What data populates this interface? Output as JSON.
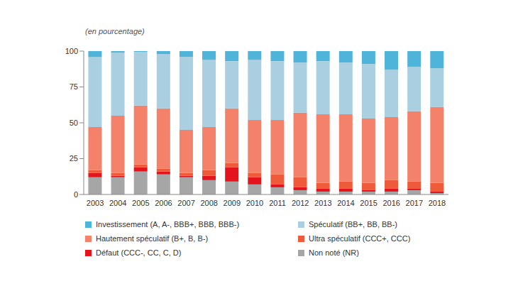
{
  "chart_data": {
    "type": "bar",
    "subtitle": "(en pourcentage)",
    "stacked": true,
    "grid": false,
    "legend": "bottom",
    "categories": [
      "2003",
      "2004",
      "2005",
      "2006",
      "2007",
      "2008",
      "2009",
      "2010",
      "2011",
      "2012",
      "2013",
      "2014",
      "2015",
      "2016",
      "2017",
      "2018"
    ],
    "ylim": [
      0,
      100
    ],
    "yticks": [
      0,
      25,
      50,
      75,
      100
    ],
    "series": [
      {
        "name": "Investissement (A, A-, BBB+, BBB, BBB-)",
        "color": "#4fb4da",
        "values": [
          4,
          1,
          0.5,
          2,
          4,
          6,
          7,
          6,
          7,
          8,
          7,
          8,
          9,
          13,
          11,
          12
        ]
      },
      {
        "name": "Spéculatif (BB+, BB, BB-)",
        "color": "#a9cfe1",
        "values": [
          49,
          44,
          37.5,
          38,
          51,
          47,
          33,
          42,
          41,
          35,
          37,
          36,
          38,
          33,
          31,
          27
        ]
      },
      {
        "name": "Hautement spéculatif (B+, B, B-)",
        "color": "#f4826a",
        "values": [
          30,
          40,
          41,
          42,
          30,
          30,
          38,
          37,
          38,
          45,
          48,
          47,
          45,
          44,
          49,
          53
        ]
      },
      {
        "name": "Ultra spéculatif (CCC+, CCC)",
        "color": "#ef5a3b",
        "values": [
          2,
          2,
          2,
          2,
          2,
          4,
          3,
          3,
          7,
          7,
          4,
          5,
          5,
          6,
          5,
          6
        ]
      },
      {
        "name": "Défaut (CCC-, CC, C, D)",
        "color": "#e3141c",
        "values": [
          3,
          1,
          3,
          2,
          1,
          3,
          10,
          5,
          2,
          2,
          2,
          2,
          1,
          2,
          1,
          1
        ]
      },
      {
        "name": "Non noté (NR)",
        "color": "#a6a6a6",
        "values": [
          12,
          12,
          16,
          14,
          12,
          10,
          9,
          7,
          5,
          3,
          2,
          2,
          2,
          2,
          3,
          1
        ]
      }
    ]
  }
}
